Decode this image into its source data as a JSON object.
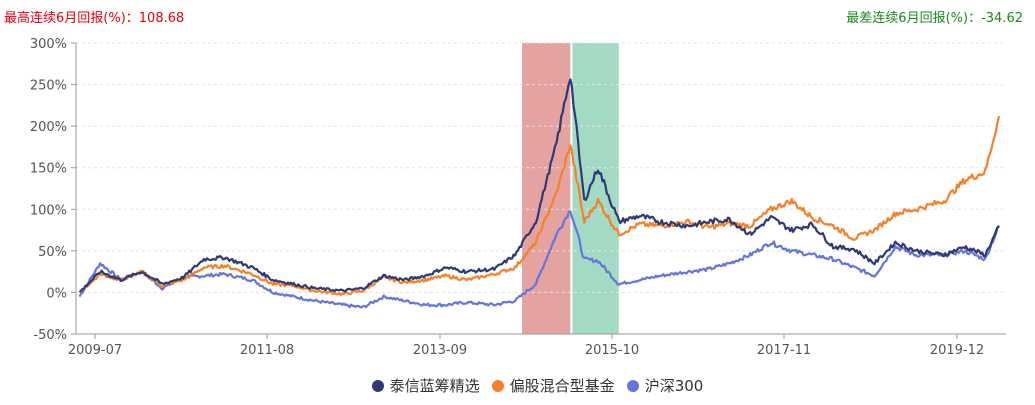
{
  "header": {
    "max_label": "最高连续6月回报(%)：",
    "max_value": "108.68",
    "min_label": "最差连续6月回报(%)：",
    "min_value": "-34.62"
  },
  "colors": {
    "fund": "#2f3a74",
    "category": "#f5812a",
    "index": "#6475dc",
    "band_high": "#e4a3a0",
    "band_low": "#a3dac4",
    "max_text": "#e60012",
    "min_text": "#1a8a1a"
  },
  "legend": [
    {
      "name": "泰信蓝筹精选",
      "color": "#2f3a74"
    },
    {
      "name": "偏股混合型基金",
      "color": "#f5812a"
    },
    {
      "name": "沪深300",
      "color": "#6475dc"
    }
  ],
  "chart_data": {
    "type": "line",
    "title": "",
    "xlabel": "",
    "ylabel": "",
    "ylim": [
      -50,
      300
    ],
    "yticks": [
      "300%",
      "250%",
      "200%",
      "150%",
      "100%",
      "50%",
      "0%",
      "-50%"
    ],
    "xticks": [
      "2009-07",
      "2011-08",
      "2013-09",
      "2015-10",
      "2017-11",
      "2019-12"
    ],
    "grid": true,
    "legend_position": "bottom",
    "highlight_bands": [
      {
        "label": "最高连续6月回报",
        "start": "2014-11",
        "end": "2015-06",
        "color": "#e4a3a0"
      },
      {
        "label": "最差连续6月回报",
        "start": "2015-06",
        "end": "2016-01",
        "color": "#a3dac4"
      }
    ],
    "x": [
      "2009-07",
      "2009-10",
      "2010-01",
      "2010-04",
      "2010-07",
      "2010-10",
      "2011-01",
      "2011-04",
      "2011-08",
      "2011-11",
      "2012-02",
      "2012-05",
      "2012-09",
      "2012-12",
      "2013-03",
      "2013-06",
      "2013-09",
      "2013-12",
      "2014-03",
      "2014-07",
      "2014-10",
      "2015-01",
      "2015-04",
      "2015-06",
      "2015-08",
      "2015-10",
      "2016-01",
      "2016-04",
      "2016-07",
      "2016-11",
      "2017-02",
      "2017-05",
      "2017-08",
      "2017-11",
      "2018-02",
      "2018-05",
      "2018-08",
      "2018-11",
      "2019-02",
      "2019-05",
      "2019-08",
      "2019-12",
      "2020-03",
      "2020-06",
      "2020-08"
    ],
    "series": [
      {
        "name": "泰信蓝筹精选",
        "values": [
          0,
          25,
          15,
          25,
          10,
          18,
          40,
          42,
          30,
          15,
          10,
          5,
          2,
          5,
          20,
          15,
          20,
          30,
          25,
          28,
          45,
          85,
          180,
          262,
          110,
          150,
          85,
          92,
          85,
          80,
          85,
          88,
          70,
          90,
          75,
          82,
          55,
          52,
          35,
          60,
          50,
          45,
          55,
          45,
          80
        ]
      },
      {
        "name": "偏股混合型基金",
        "values": [
          0,
          22,
          15,
          25,
          8,
          15,
          30,
          32,
          22,
          10,
          8,
          2,
          -2,
          2,
          18,
          12,
          15,
          20,
          15,
          22,
          30,
          60,
          120,
          178,
          85,
          110,
          70,
          82,
          80,
          85,
          78,
          83,
          80,
          100,
          110,
          90,
          80,
          65,
          75,
          95,
          100,
          110,
          135,
          145,
          212
        ]
      },
      {
        "name": "沪深300",
        "values": [
          -5,
          35,
          15,
          25,
          5,
          18,
          20,
          22,
          15,
          0,
          -5,
          -10,
          -15,
          -18,
          -5,
          -10,
          -15,
          -15,
          -12,
          -15,
          -10,
          10,
          70,
          100,
          40,
          38,
          10,
          15,
          20,
          25,
          28,
          35,
          45,
          60,
          50,
          45,
          40,
          30,
          20,
          55,
          45,
          45,
          50,
          40,
          80
        ]
      }
    ]
  }
}
